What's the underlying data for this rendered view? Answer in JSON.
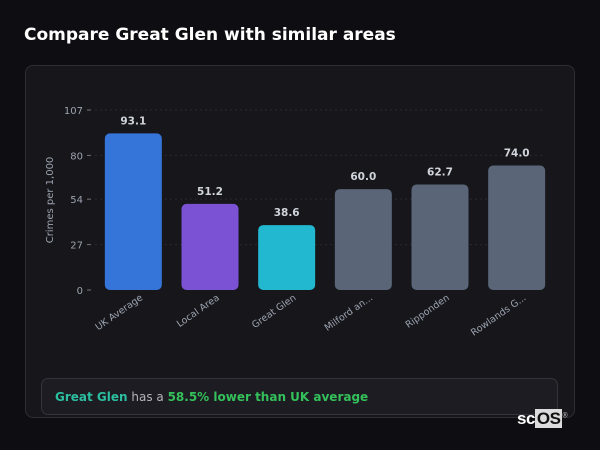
{
  "title": "Compare Great Glen with similar areas",
  "chart_data": {
    "type": "bar",
    "ylabel": "Crimes per 1,000",
    "xlabel": "",
    "ylim": [
      0,
      107
    ],
    "yticks": [
      0,
      27,
      54,
      80,
      107
    ],
    "grid": true,
    "categories": [
      "UK Average",
      "Local Area",
      "Great Glen",
      "Milford an...",
      "Ripponden",
      "Rowlands G..."
    ],
    "values": [
      93.1,
      51.2,
      38.6,
      60.0,
      62.7,
      74.0
    ],
    "value_labels": [
      "93.1",
      "51.2",
      "38.6",
      "60.0",
      "62.7",
      "74.0"
    ],
    "colors": [
      "#3574d9",
      "#7b52d4",
      "#22b8d0",
      "#5a6577",
      "#5a6577",
      "#5a6577"
    ]
  },
  "summary": {
    "area": "Great Glen",
    "middle": " has a ",
    "comparison": "58.5% lower than UK average"
  },
  "logo": {
    "prefix": "sc",
    "box": "OS",
    "mark": "®"
  }
}
